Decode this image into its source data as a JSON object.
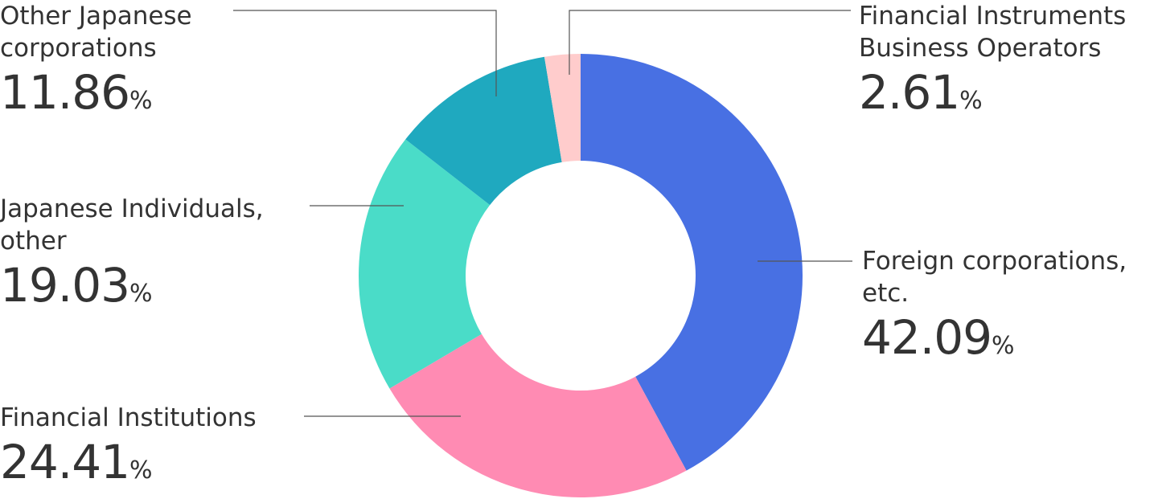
{
  "chart_data": {
    "type": "pie",
    "categories": [
      "Foreign corporations, etc.",
      "Financial Institutions",
      "Japanese Individuals, other",
      "Other Japanese corporations",
      "Financial Instruments Business Operators"
    ],
    "values": [
      42.09,
      24.41,
      19.03,
      11.86,
      2.61
    ],
    "value_labels": [
      "42.09%",
      "24.41%",
      "19.03%",
      "11.86%",
      "2.61%"
    ],
    "colors": [
      "#4870e3",
      "#ff8bb3",
      "#4adcc8",
      "#1fa9bf",
      "#ffcccc"
    ]
  }
}
